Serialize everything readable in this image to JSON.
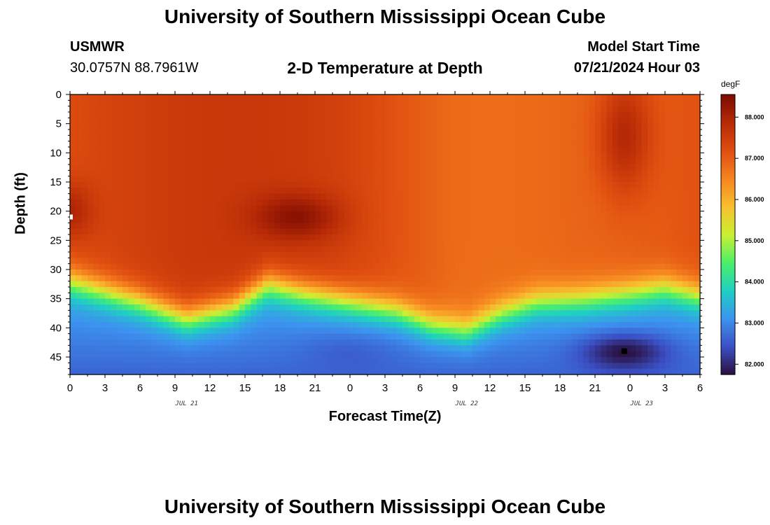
{
  "header": {
    "title_top": "University of Southern Mississippi Ocean Cube",
    "title_bottom": "University of Southern Mississippi Ocean Cube",
    "station": "USMWR",
    "coords": "30.0757N  88.7961W",
    "subtitle": "2-D Temperature at Depth",
    "model_label": "Model Start Time",
    "model_time": "07/21/2024 Hour 03"
  },
  "chart_data": {
    "type": "heatmap",
    "title": "2-D Temperature at Depth",
    "xlabel": "Forecast Time(Z)",
    "ylabel": "Depth (ft)",
    "units": "degF",
    "x_hours_range": [
      0,
      54
    ],
    "y_range_ft": [
      0,
      48
    ],
    "x_tick_labels": [
      "0",
      "3",
      "6",
      "9",
      "12",
      "15",
      "18",
      "21",
      "0",
      "3",
      "6",
      "9",
      "12",
      "15",
      "18",
      "21",
      "0",
      "3",
      "6"
    ],
    "y_tick_labels": [
      "0",
      "5",
      "10",
      "15",
      "20",
      "25",
      "30",
      "35",
      "40",
      "45"
    ],
    "date_labels": [
      "JUL 21",
      "JUL 22",
      "JUL 23"
    ],
    "colorbar": {
      "label": "degF",
      "range": [
        81.75,
        88.55
      ],
      "ticks": [
        "82.000",
        "83.000",
        "84.000",
        "85.000",
        "86.000",
        "87.000",
        "88.000"
      ],
      "colors": [
        "#2a0f3e",
        "#3b4fc4",
        "#3c93f0",
        "#1fcfc4",
        "#4cef6a",
        "#c9f032",
        "#f8c12f",
        "#f68420",
        "#e04e10",
        "#b72a06",
        "#7c0b02"
      ]
    },
    "thermocline_depth_ft": [
      {
        "hour": 0,
        "depth": 29.5
      },
      {
        "hour": 6,
        "depth": 33
      },
      {
        "hour": 10,
        "depth": 36
      },
      {
        "hour": 14,
        "depth": 34
      },
      {
        "hour": 17,
        "depth": 30
      },
      {
        "hour": 20,
        "depth": 31.5
      },
      {
        "hour": 24,
        "depth": 33
      },
      {
        "hour": 28,
        "depth": 34.5
      },
      {
        "hour": 31,
        "depth": 37
      },
      {
        "hour": 34,
        "depth": 38
      },
      {
        "hour": 37,
        "depth": 35
      },
      {
        "hour": 40,
        "depth": 33
      },
      {
        "hour": 44,
        "depth": 32.5
      },
      {
        "hour": 48,
        "depth": 31.5
      },
      {
        "hour": 51,
        "depth": 30.5
      },
      {
        "hour": 54,
        "depth": 32
      }
    ],
    "features": [
      {
        "type": "warm_core",
        "hour": 19.5,
        "depth": 21,
        "value": 88.3
      },
      {
        "type": "warm_core",
        "hour": 47.5,
        "depth": 7,
        "value": 88.2
      },
      {
        "type": "warm_core",
        "hour": 0,
        "depth": 20,
        "value": 88.0
      },
      {
        "type": "cold_core",
        "hour": 47.5,
        "depth": 44,
        "value": 81.8
      },
      {
        "type": "cool_pocket",
        "hour": 24,
        "depth": 43.5,
        "value": 82.8
      }
    ]
  }
}
